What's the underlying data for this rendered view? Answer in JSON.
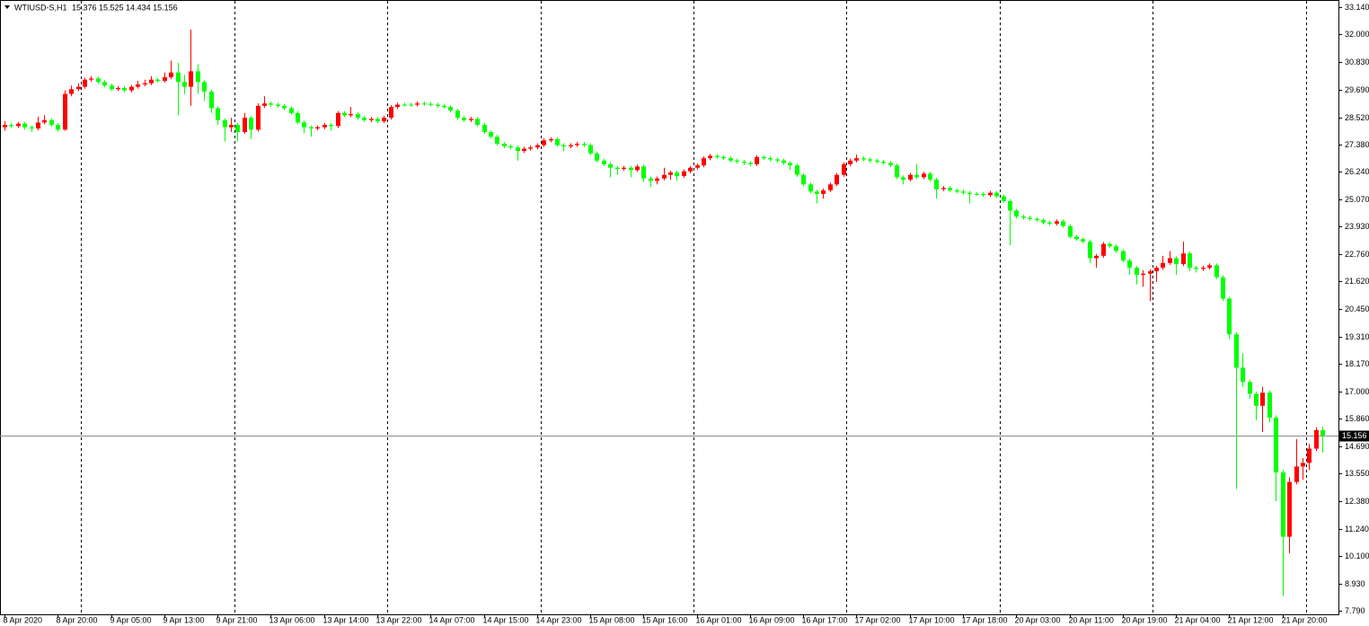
{
  "chart_data": {
    "type": "candlestick",
    "title": "WTIUSD-S,H1",
    "ohlc_label": "15.376 15.525 14.434 15.156",
    "up_color": "#ff0000",
    "down_color": "#00ff00",
    "open": [
      28.1,
      28.2,
      28.15,
      28.25,
      28.1,
      28.05,
      28.3,
      28.4,
      28.2,
      28.0,
      29.5,
      29.7,
      29.8,
      30.1,
      30.15,
      30.0,
      29.85,
      29.7,
      29.75,
      29.65,
      29.8,
      29.9,
      29.95,
      30.1,
      30.05,
      30.2,
      30.4,
      30.0,
      29.8,
      30.45,
      30.0,
      29.6,
      28.9,
      28.4,
      28.1,
      28.2,
      27.9,
      28.5,
      28.0,
      29.0,
      29.1,
      29.05,
      29.0,
      28.9,
      28.7,
      28.3,
      28.1,
      28.05,
      28.1,
      28.2,
      28.15,
      28.7,
      28.6,
      28.65,
      28.5,
      28.4,
      28.45,
      28.35,
      28.5,
      28.95,
      29.05,
      29.05,
      29.05,
      29.1,
      29.08,
      29.05,
      29.0,
      28.95,
      28.8,
      28.5,
      28.4,
      28.45,
      28.2,
      27.9,
      27.7,
      27.4,
      27.3,
      27.25,
      27.1,
      27.2,
      27.25,
      27.35,
      27.55,
      27.6,
      27.35,
      27.3,
      27.35,
      27.4,
      27.35,
      27.0,
      26.7,
      26.55,
      26.4,
      26.35,
      26.4,
      26.3,
      26.45,
      25.95,
      25.85,
      25.95,
      26.1,
      26.2,
      26.05,
      26.25,
      26.4,
      26.5,
      26.8,
      26.9,
      26.85,
      26.8,
      26.7,
      26.65,
      26.6,
      26.55,
      26.85,
      26.8,
      26.75,
      26.7,
      26.6,
      26.5,
      26.1,
      25.7,
      25.4,
      25.3,
      25.45,
      25.7,
      26.1,
      26.55,
      26.7,
      26.8,
      26.75,
      26.7,
      26.65,
      26.6,
      26.5,
      26.0,
      25.9,
      26.1,
      26.0,
      26.15,
      25.9,
      25.5,
      25.55,
      25.45,
      25.4,
      25.35,
      25.3,
      25.3,
      25.25,
      25.35,
      25.2,
      25.0,
      24.6,
      24.35,
      24.3,
      24.25,
      24.2,
      24.1,
      24.05,
      24.15,
      23.95,
      23.5,
      23.4,
      23.3,
      22.6,
      22.7,
      23.2,
      23.1,
      22.9,
      22.5,
      22.2,
      21.9,
      21.95,
      22.05,
      22.2,
      22.4,
      22.6,
      22.35,
      22.8,
      22.2,
      22.15,
      22.2,
      22.3,
      21.8,
      20.9,
      19.4,
      18.0,
      17.4,
      16.9,
      16.4,
      16.95,
      15.9,
      13.6,
      10.9,
      13.2,
      13.85,
      14.0,
      14.6,
      15.376
    ],
    "high": [
      28.35,
      28.28,
      28.33,
      28.33,
      28.18,
      28.55,
      28.6,
      28.48,
      28.28,
      29.65,
      29.85,
      29.95,
      30.18,
      30.25,
      30.23,
      30.08,
      29.93,
      29.83,
      29.83,
      29.88,
      30.05,
      30.1,
      30.25,
      30.18,
      30.4,
      30.9,
      30.8,
      30.3,
      32.2,
      30.75,
      30.08,
      29.68,
      28.98,
      28.48,
      28.5,
      28.28,
      28.7,
      28.58,
      29.1,
      29.4,
      29.18,
      29.13,
      29.08,
      28.98,
      28.78,
      28.38,
      28.18,
      28.18,
      28.28,
      28.28,
      28.78,
      28.78,
      28.95,
      28.73,
      28.58,
      28.53,
      28.53,
      28.58,
      29.03,
      29.13,
      29.13,
      29.13,
      29.18,
      29.18,
      29.16,
      29.13,
      29.08,
      29.03,
      28.88,
      28.58,
      28.53,
      28.53,
      28.28,
      27.98,
      27.78,
      27.48,
      27.38,
      27.33,
      27.28,
      27.33,
      27.43,
      27.63,
      27.68,
      27.68,
      27.43,
      27.43,
      27.48,
      27.48,
      27.43,
      27.08,
      26.78,
      26.63,
      26.48,
      26.48,
      26.48,
      26.53,
      26.53,
      26.03,
      26.03,
      26.4,
      26.28,
      26.28,
      26.33,
      26.48,
      26.58,
      26.88,
      26.98,
      26.98,
      26.93,
      26.88,
      26.78,
      26.73,
      26.68,
      26.93,
      26.93,
      26.88,
      26.83,
      26.78,
      26.68,
      26.58,
      26.18,
      25.78,
      25.48,
      25.53,
      25.78,
      26.18,
      26.63,
      26.78,
      26.95,
      26.88,
      26.83,
      26.78,
      26.73,
      26.68,
      26.58,
      26.08,
      26.18,
      26.55,
      26.23,
      26.23,
      25.98,
      25.63,
      25.63,
      25.53,
      25.48,
      25.43,
      25.38,
      25.38,
      25.43,
      25.43,
      25.28,
      25.08,
      24.68,
      24.43,
      24.38,
      24.33,
      24.28,
      24.18,
      24.23,
      24.23,
      24.03,
      23.58,
      23.48,
      23.38,
      22.78,
      23.28,
      23.28,
      23.18,
      22.98,
      22.58,
      22.28,
      22.1,
      22.13,
      22.28,
      22.7,
      22.9,
      22.68,
      23.3,
      22.88,
      22.28,
      22.28,
      22.38,
      22.38,
      21.88,
      20.98,
      19.48,
      18.6,
      17.5,
      17.0,
      17.2,
      17.05,
      16.0,
      13.7,
      13.4,
      15.0,
      14.2,
      14.8,
      15.5,
      15.525
    ],
    "low": [
      27.95,
      28.07,
      28.07,
      28.0,
      27.9,
      27.97,
      28.22,
      28.12,
      27.92,
      27.95,
      29.4,
      29.62,
      29.72,
      30.02,
      29.92,
      29.77,
      29.62,
      29.62,
      29.57,
      29.57,
      29.72,
      29.82,
      29.87,
      29.97,
      29.97,
      30.12,
      28.6,
      29.5,
      29.0,
      29.5,
      29.2,
      28.7,
      28.2,
      27.5,
      27.9,
      27.5,
      27.82,
      27.6,
      27.92,
      28.92,
      28.97,
      28.92,
      28.82,
      28.62,
      28.22,
      27.85,
      27.7,
      27.97,
      28.02,
      27.95,
      28.07,
      28.52,
      28.52,
      28.42,
      28.32,
      28.32,
      28.27,
      28.27,
      28.42,
      28.87,
      28.97,
      28.97,
      28.97,
      29.0,
      28.97,
      28.92,
      28.87,
      28.72,
      28.42,
      28.32,
      28.32,
      28.12,
      27.82,
      27.62,
      27.32,
      27.22,
      27.17,
      26.7,
      27.02,
      27.12,
      27.17,
      27.27,
      27.47,
      27.27,
      27.1,
      27.22,
      27.27,
      27.27,
      26.92,
      26.62,
      26.47,
      26.0,
      26.1,
      26.27,
      26.0,
      26.22,
      25.8,
      25.6,
      25.7,
      25.87,
      25.9,
      25.85,
      25.97,
      26.17,
      26.32,
      26.42,
      26.72,
      26.77,
      26.72,
      26.62,
      26.57,
      26.52,
      26.47,
      26.47,
      26.72,
      26.67,
      26.62,
      26.52,
      26.3,
      26.02,
      25.62,
      25.32,
      24.9,
      25.1,
      25.37,
      25.62,
      26.02,
      26.47,
      26.62,
      26.67,
      26.62,
      26.57,
      26.52,
      26.42,
      25.92,
      25.7,
      25.82,
      25.92,
      25.92,
      25.82,
      25.1,
      25.42,
      25.37,
      25.32,
      25.27,
      24.9,
      25.22,
      25.17,
      25.17,
      25.12,
      24.92,
      23.15,
      24.27,
      24.22,
      24.17,
      24.12,
      24.02,
      23.97,
      23.97,
      23.87,
      23.42,
      23.32,
      23.22,
      22.4,
      22.2,
      22.62,
      23.02,
      22.82,
      22.42,
      21.9,
      21.5,
      21.4,
      20.8,
      21.6,
      22.12,
      22.32,
      21.9,
      22.27,
      22.05,
      22.0,
      22.07,
      22.12,
      21.72,
      20.8,
      19.2,
      12.9,
      17.2,
      16.7,
      15.8,
      15.3,
      15.7,
      12.4,
      8.4,
      10.2,
      13.1,
      13.3,
      13.7,
      14.5,
      14.434
    ],
    "close": [
      28.2,
      28.15,
      28.25,
      28.1,
      28.05,
      28.3,
      28.4,
      28.2,
      28.0,
      29.5,
      29.7,
      29.8,
      30.1,
      30.15,
      30.0,
      29.85,
      29.7,
      29.75,
      29.65,
      29.8,
      29.9,
      29.95,
      30.1,
      30.05,
      30.2,
      30.4,
      30.0,
      29.8,
      30.45,
      30.0,
      29.6,
      28.9,
      28.4,
      28.1,
      28.2,
      27.9,
      28.5,
      28.0,
      29.0,
      29.1,
      29.05,
      29.0,
      28.9,
      28.7,
      28.3,
      28.1,
      28.05,
      28.1,
      28.2,
      28.15,
      28.7,
      28.6,
      28.65,
      28.5,
      28.4,
      28.45,
      28.35,
      28.5,
      28.95,
      29.05,
      29.05,
      29.05,
      29.1,
      29.08,
      29.05,
      29.0,
      28.95,
      28.8,
      28.5,
      28.4,
      28.45,
      28.2,
      27.9,
      27.7,
      27.4,
      27.3,
      27.25,
      27.1,
      27.2,
      27.25,
      27.35,
      27.55,
      27.6,
      27.35,
      27.3,
      27.35,
      27.4,
      27.35,
      27.0,
      26.7,
      26.55,
      26.4,
      26.35,
      26.4,
      26.3,
      26.45,
      25.95,
      25.85,
      25.95,
      26.1,
      26.2,
      26.05,
      26.25,
      26.4,
      26.5,
      26.8,
      26.9,
      26.85,
      26.8,
      26.7,
      26.65,
      26.6,
      26.55,
      26.85,
      26.8,
      26.75,
      26.7,
      26.6,
      26.5,
      26.1,
      25.7,
      25.4,
      25.3,
      25.45,
      25.7,
      26.1,
      26.55,
      26.7,
      26.8,
      26.75,
      26.7,
      26.65,
      26.6,
      26.5,
      26.0,
      25.9,
      26.1,
      26.0,
      26.15,
      25.9,
      25.5,
      25.55,
      25.45,
      25.4,
      25.35,
      25.3,
      25.3,
      25.25,
      25.35,
      25.2,
      25.0,
      24.6,
      24.35,
      24.3,
      24.25,
      24.2,
      24.1,
      24.05,
      24.15,
      23.95,
      23.5,
      23.4,
      23.3,
      22.6,
      22.7,
      23.2,
      23.1,
      22.9,
      22.5,
      22.2,
      21.9,
      21.95,
      22.05,
      22.2,
      22.4,
      22.6,
      22.35,
      22.8,
      22.2,
      22.15,
      22.2,
      22.3,
      21.8,
      20.9,
      19.4,
      18.0,
      17.4,
      16.9,
      16.4,
      16.95,
      15.9,
      13.6,
      10.9,
      13.2,
      13.85,
      14.0,
      14.6,
      15.38,
      15.156
    ],
    "ylim": [
      7.64,
      33.37
    ],
    "yticks": [
      {
        "value": 33.14,
        "label": "33.140"
      },
      {
        "value": 32.0,
        "label": "32.000"
      },
      {
        "value": 30.83,
        "label": "30.830"
      },
      {
        "value": 29.69,
        "label": "29.690"
      },
      {
        "value": 28.52,
        "label": "28.520"
      },
      {
        "value": 27.38,
        "label": "27.380"
      },
      {
        "value": 26.24,
        "label": "26.240"
      },
      {
        "value": 25.07,
        "label": "25.070"
      },
      {
        "value": 23.93,
        "label": "23.930"
      },
      {
        "value": 22.76,
        "label": "22.760"
      },
      {
        "value": 21.62,
        "label": "21.620"
      },
      {
        "value": 20.45,
        "label": "20.450"
      },
      {
        "value": 19.31,
        "label": "19.310"
      },
      {
        "value": 18.17,
        "label": "18.170"
      },
      {
        "value": 17.0,
        "label": "17.000"
      },
      {
        "value": 15.86,
        "label": "15.860"
      },
      {
        "value": 14.69,
        "label": "14.690"
      },
      {
        "value": 13.55,
        "label": "13.550"
      },
      {
        "value": 12.38,
        "label": "12.380"
      },
      {
        "value": 11.24,
        "label": "11.240"
      },
      {
        "value": 10.1,
        "label": "10.100"
      },
      {
        "value": 8.93,
        "label": "8.930"
      },
      {
        "value": 7.79,
        "label": "7.790"
      }
    ],
    "xticks": [
      {
        "value": 0,
        "label": "8 Apr 2020"
      },
      {
        "value": 8,
        "label": "8 Apr 20:00"
      },
      {
        "value": 16,
        "label": "9 Apr 05:00"
      },
      {
        "value": 24,
        "label": "9 Apr 13:00"
      },
      {
        "value": 32,
        "label": "9 Apr 21:00"
      },
      {
        "value": 40,
        "label": "13 Apr 06:00"
      },
      {
        "value": 48,
        "label": "13 Apr 14:00"
      },
      {
        "value": 56,
        "label": "13 Apr 22:00"
      },
      {
        "value": 64,
        "label": "14 Apr 07:00"
      },
      {
        "value": 72,
        "label": "14 Apr 15:00"
      },
      {
        "value": 80,
        "label": "14 Apr 23:00"
      },
      {
        "value": 88,
        "label": "15 Apr 08:00"
      },
      {
        "value": 96,
        "label": "15 Apr 16:00"
      },
      {
        "value": 104,
        "label": "16 Apr 01:00"
      },
      {
        "value": 112,
        "label": "16 Apr 09:00"
      },
      {
        "value": 120,
        "label": "16 Apr 17:00"
      },
      {
        "value": 128,
        "label": "17 Apr 02:00"
      },
      {
        "value": 136,
        "label": "17 Apr 10:00"
      },
      {
        "value": 144,
        "label": "17 Apr 18:00"
      },
      {
        "value": 152,
        "label": "20 Apr 03:00"
      },
      {
        "value": 160,
        "label": "20 Apr 11:00"
      },
      {
        "value": 168,
        "label": "20 Apr 19:00"
      },
      {
        "value": 176,
        "label": "21 Apr 04:00"
      },
      {
        "value": 184,
        "label": "21 Apr 12:00"
      },
      {
        "value": 192,
        "label": "21 Apr 20:00"
      }
    ],
    "period_separators": [
      12,
      35,
      58,
      81,
      104,
      127,
      150,
      173,
      196
    ],
    "last_price": {
      "value": 15.156,
      "label": "15.156"
    }
  }
}
